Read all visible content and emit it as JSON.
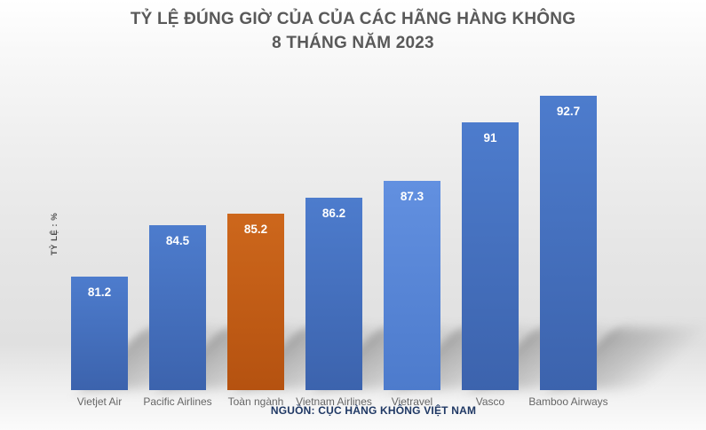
{
  "title": {
    "line1": "TỶ LỆ ĐÚNG GIỜ CỦA CỦA CÁC HÃNG HÀNG KHÔNG",
    "line2": "8 THÁNG NĂM 2023"
  },
  "y_axis_label": "TỶ LỆ : %",
  "source": "NGUỒN: CỤC HÀNG KHÔNG VIỆT NAM",
  "colors": {
    "bar_blue": "#4472C4",
    "bar_light_blue": "#5585D6",
    "bar_orange": "#C55A11",
    "title_text": "#595959",
    "category_text": "#666666",
    "source_text": "#1F3864",
    "value_label_text": "#FFFFFF"
  },
  "chart_data": {
    "type": "bar",
    "title": "TỶ LỆ ĐÚNG GIỜ CỦA CỦA CÁC HÃNG HÀNG KHÔNG 8 THÁNG NĂM 2023",
    "categories": [
      "Vietjet Air",
      "Pacific Airlines",
      "Toàn ngành",
      "Vietnam Airlines",
      "Vietravel",
      "Vasco",
      "Bamboo Airways"
    ],
    "values": [
      81.2,
      84.5,
      85.2,
      86.2,
      87.3,
      91,
      92.7
    ],
    "data_labels": [
      "81.2",
      "84.5",
      "85.2",
      "86.2",
      "87.3",
      "91",
      "92.7"
    ],
    "bar_colors": [
      "#4472C4",
      "#4472C4",
      "#C55A11",
      "#4472C4",
      "#5585D6",
      "#4472C4",
      "#4472C4"
    ],
    "xlabel": "",
    "ylabel": "TỶ LỆ : %",
    "ylim": [
      74,
      95
    ],
    "grid": false,
    "legend": false,
    "data_labels_position": "inside-top",
    "source": "NGUỒN: CỤC HÀNG KHÔNG VIỆT NAM"
  }
}
